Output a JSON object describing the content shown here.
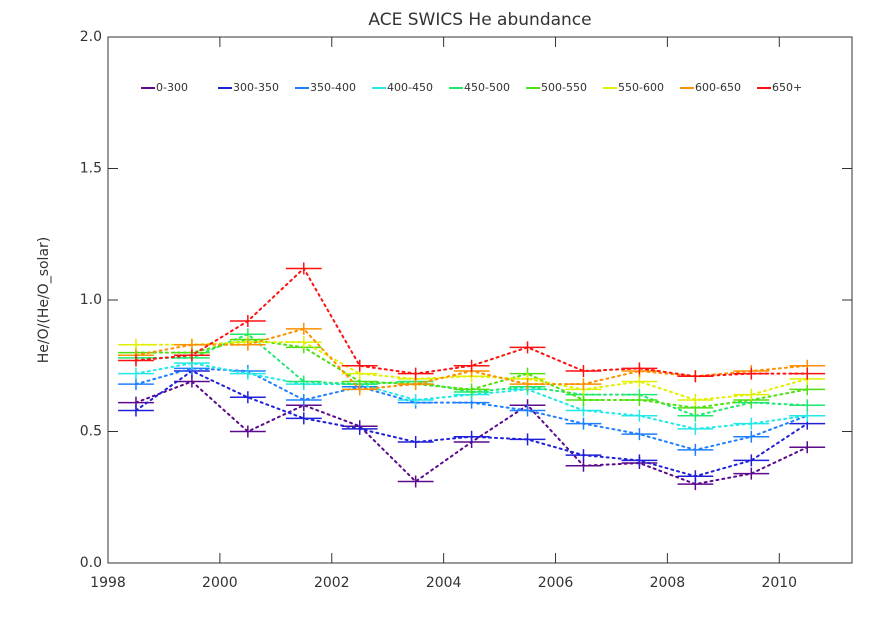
{
  "chart_data": {
    "type": "line",
    "title": "ACE SWICS He abundance",
    "y_label": "He/O/(He/O_solar)",
    "x": [
      1998.5,
      1999.5,
      2000.5,
      2001.5,
      2002.5,
      2003.5,
      2004.5,
      2005.5,
      2006.5,
      2007.5,
      2008.5,
      2009.5,
      2010.5
    ],
    "xlim": [
      1998,
      2011.3
    ],
    "xticks": [
      1998,
      2000,
      2002,
      2004,
      2006,
      2008,
      2010
    ],
    "ylim": [
      0,
      2
    ],
    "yticks": [
      {
        "value": 0,
        "label": "0.0"
      },
      {
        "value": 0.5,
        "label": "0.5"
      },
      {
        "value": 1,
        "label": "1.0"
      },
      {
        "value": 1.5,
        "label": "1.5"
      },
      {
        "value": 2,
        "label": "2.0"
      }
    ],
    "series": [
      {
        "name": "0-300",
        "color": "#5c0a8c",
        "values": [
          0.61,
          0.69,
          0.5,
          0.6,
          0.52,
          0.31,
          0.46,
          0.6,
          0.37,
          0.38,
          0.3,
          0.34,
          0.44
        ]
      },
      {
        "name": "300-350",
        "color": "#2020d8",
        "values": [
          0.58,
          0.73,
          0.63,
          0.55,
          0.51,
          0.46,
          0.48,
          0.47,
          0.41,
          0.39,
          0.33,
          0.39,
          0.53
        ]
      },
      {
        "name": "350-400",
        "color": "#1e7fff",
        "values": [
          0.68,
          0.74,
          0.73,
          0.62,
          0.67,
          0.61,
          0.61,
          0.58,
          0.53,
          0.49,
          0.43,
          0.48,
          0.56
        ]
      },
      {
        "name": "400-450",
        "color": "#22e8e8",
        "values": [
          0.72,
          0.76,
          0.72,
          0.68,
          0.68,
          0.62,
          0.64,
          0.66,
          0.58,
          0.56,
          0.51,
          0.53,
          0.56
        ]
      },
      {
        "name": "450-500",
        "color": "#20e870",
        "values": [
          0.78,
          0.78,
          0.87,
          0.69,
          0.68,
          0.69,
          0.65,
          0.67,
          0.64,
          0.64,
          0.56,
          0.61,
          0.6
        ]
      },
      {
        "name": "500-550",
        "color": "#50e010",
        "values": [
          0.8,
          0.8,
          0.85,
          0.82,
          0.69,
          0.68,
          0.66,
          0.72,
          0.62,
          0.62,
          0.59,
          0.62,
          0.66
        ]
      },
      {
        "name": "550-600",
        "color": "#e0f000",
        "values": [
          0.83,
          0.83,
          0.84,
          0.84,
          0.72,
          0.7,
          0.71,
          0.7,
          0.66,
          0.69,
          0.62,
          0.64,
          0.7
        ]
      },
      {
        "name": "600-650",
        "color": "#ff9000",
        "values": [
          0.79,
          0.83,
          0.83,
          0.89,
          0.66,
          0.68,
          0.73,
          0.68,
          0.68,
          0.73,
          0.71,
          0.73,
          0.75
        ]
      },
      {
        "name": "650+",
        "color": "#ff1010",
        "values": [
          0.77,
          0.79,
          0.92,
          1.12,
          0.75,
          0.72,
          0.75,
          0.82,
          0.73,
          0.74,
          0.71,
          0.72,
          0.72
        ]
      }
    ]
  }
}
